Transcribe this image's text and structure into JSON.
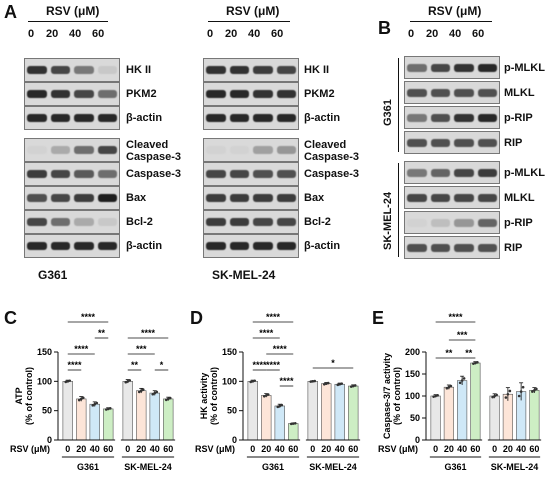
{
  "panels": {
    "A": "A",
    "B": "B",
    "C": "C",
    "D": "D",
    "E": "E"
  },
  "treatment_header": "RSV (μM)",
  "doses": [
    "0",
    "20",
    "40",
    "60"
  ],
  "western_A": {
    "g361_label": "G361",
    "sk_label": "SK-MEL-24",
    "blot_labels": [
      "HK II",
      "PKM2",
      "β-actin",
      "Cleaved Caspase-3",
      "Caspase-3",
      "Bax",
      "Bcl-2",
      "β-actin"
    ],
    "cleaved_line1": "Cleaved",
    "cleaved_line2": "Caspase-3"
  },
  "western_B": {
    "labels": [
      "p-MLKL",
      "MLKL",
      "p-RIP",
      "RIP"
    ],
    "g361_label": "G361",
    "sk_label": "SK-MEL-24"
  },
  "bar_charts": {
    "rsv_label": "RSV (μM)",
    "groups": [
      "G361",
      "SK-MEL-24"
    ],
    "colors": [
      "#e8e8e8",
      "#fde5d8",
      "#cfe8f7",
      "#cdeec4"
    ],
    "sig_labels": {
      "C": [
        "****",
        "**",
        "****",
        "****",
        "****",
        "***",
        "**",
        "*"
      ],
      "D": [
        "****",
        "****",
        "****",
        "****",
        "****",
        "****",
        "*"
      ],
      "E": [
        "****",
        "***",
        "**",
        "**"
      ]
    }
  },
  "chart_data": [
    {
      "type": "bar",
      "panel": "C",
      "ylabel": "ATP (% of control)",
      "categories": [
        "0",
        "20",
        "40",
        "60",
        "0",
        "20",
        "40",
        "60"
      ],
      "groups": [
        "G361",
        "SK-MEL-24"
      ],
      "values": [
        100,
        70,
        61,
        53,
        100,
        84,
        80,
        70
      ],
      "errors": [
        2,
        4,
        4,
        2,
        3,
        4,
        4,
        3
      ],
      "ylim": [
        0,
        150
      ],
      "yticks": [
        0,
        50,
        100,
        150
      ]
    },
    {
      "type": "bar",
      "panel": "D",
      "ylabel": "HK activity (% of control)",
      "categories": [
        "0",
        "20",
        "40",
        "60",
        "0",
        "20",
        "40",
        "60"
      ],
      "groups": [
        "G361",
        "SK-MEL-24"
      ],
      "values": [
        100,
        76,
        58,
        28,
        100,
        96,
        95,
        92
      ],
      "errors": [
        2,
        3,
        3,
        1,
        1,
        2,
        2,
        2
      ],
      "ylim": [
        0,
        150
      ],
      "yticks": [
        0,
        50,
        100,
        150
      ]
    },
    {
      "type": "bar",
      "panel": "E",
      "ylabel": "Caspase-3/7 activity (% of control)",
      "categories": [
        "0",
        "20",
        "40",
        "60",
        "0",
        "20",
        "40",
        "60"
      ],
      "groups": [
        "G361",
        "SK-MEL-24"
      ],
      "values": [
        100,
        120,
        135,
        175,
        100,
        104,
        110,
        113
      ],
      "errors": [
        3,
        5,
        10,
        3,
        5,
        15,
        20,
        6
      ],
      "ylim": [
        0,
        200
      ],
      "yticks": [
        0,
        50,
        100,
        150,
        200
      ]
    }
  ]
}
